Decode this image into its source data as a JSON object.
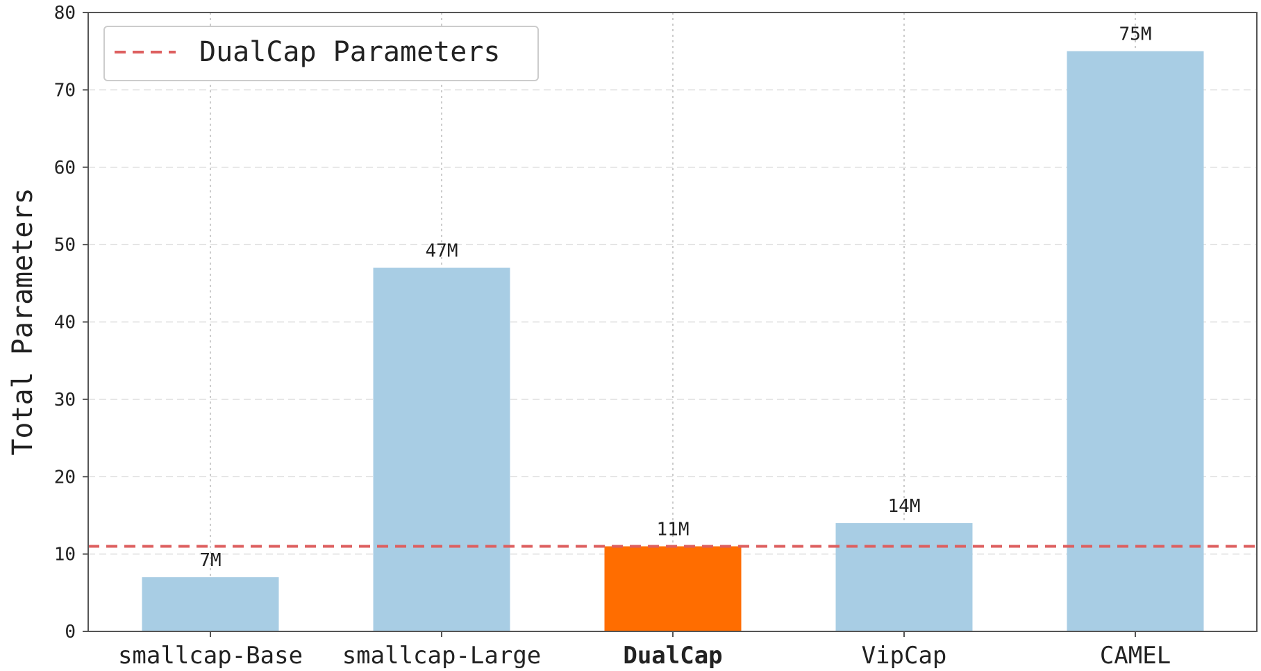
{
  "chart_data": {
    "type": "bar",
    "categories": [
      "smallcap-Base",
      "smallcap-Large",
      "DualCap",
      "VipCap",
      "CAMEL"
    ],
    "values": [
      7,
      47,
      11,
      14,
      75
    ],
    "value_labels": [
      "7M",
      "47M",
      "11M",
      "14M",
      "75M"
    ],
    "highlight_category": "DualCap",
    "title": "",
    "xlabel": "",
    "ylabel": "Total Parameters",
    "ylim": [
      0,
      80
    ],
    "yticks": [
      0,
      10,
      20,
      30,
      40,
      50,
      60,
      70,
      80
    ],
    "reference_line": {
      "name": "DualCap Parameters",
      "value": 11,
      "style": "dashed"
    },
    "legend": {
      "placement": "top-left",
      "entries": [
        "DualCap Parameters"
      ]
    },
    "grid": {
      "y": "dashed",
      "x": "dotted"
    },
    "colors": {
      "bar": "#a8cde4",
      "highlight_bar": "#ff6d00",
      "reference_line": "#dd5f5f",
      "axis": "#555555",
      "grid": "#dddddd"
    }
  }
}
